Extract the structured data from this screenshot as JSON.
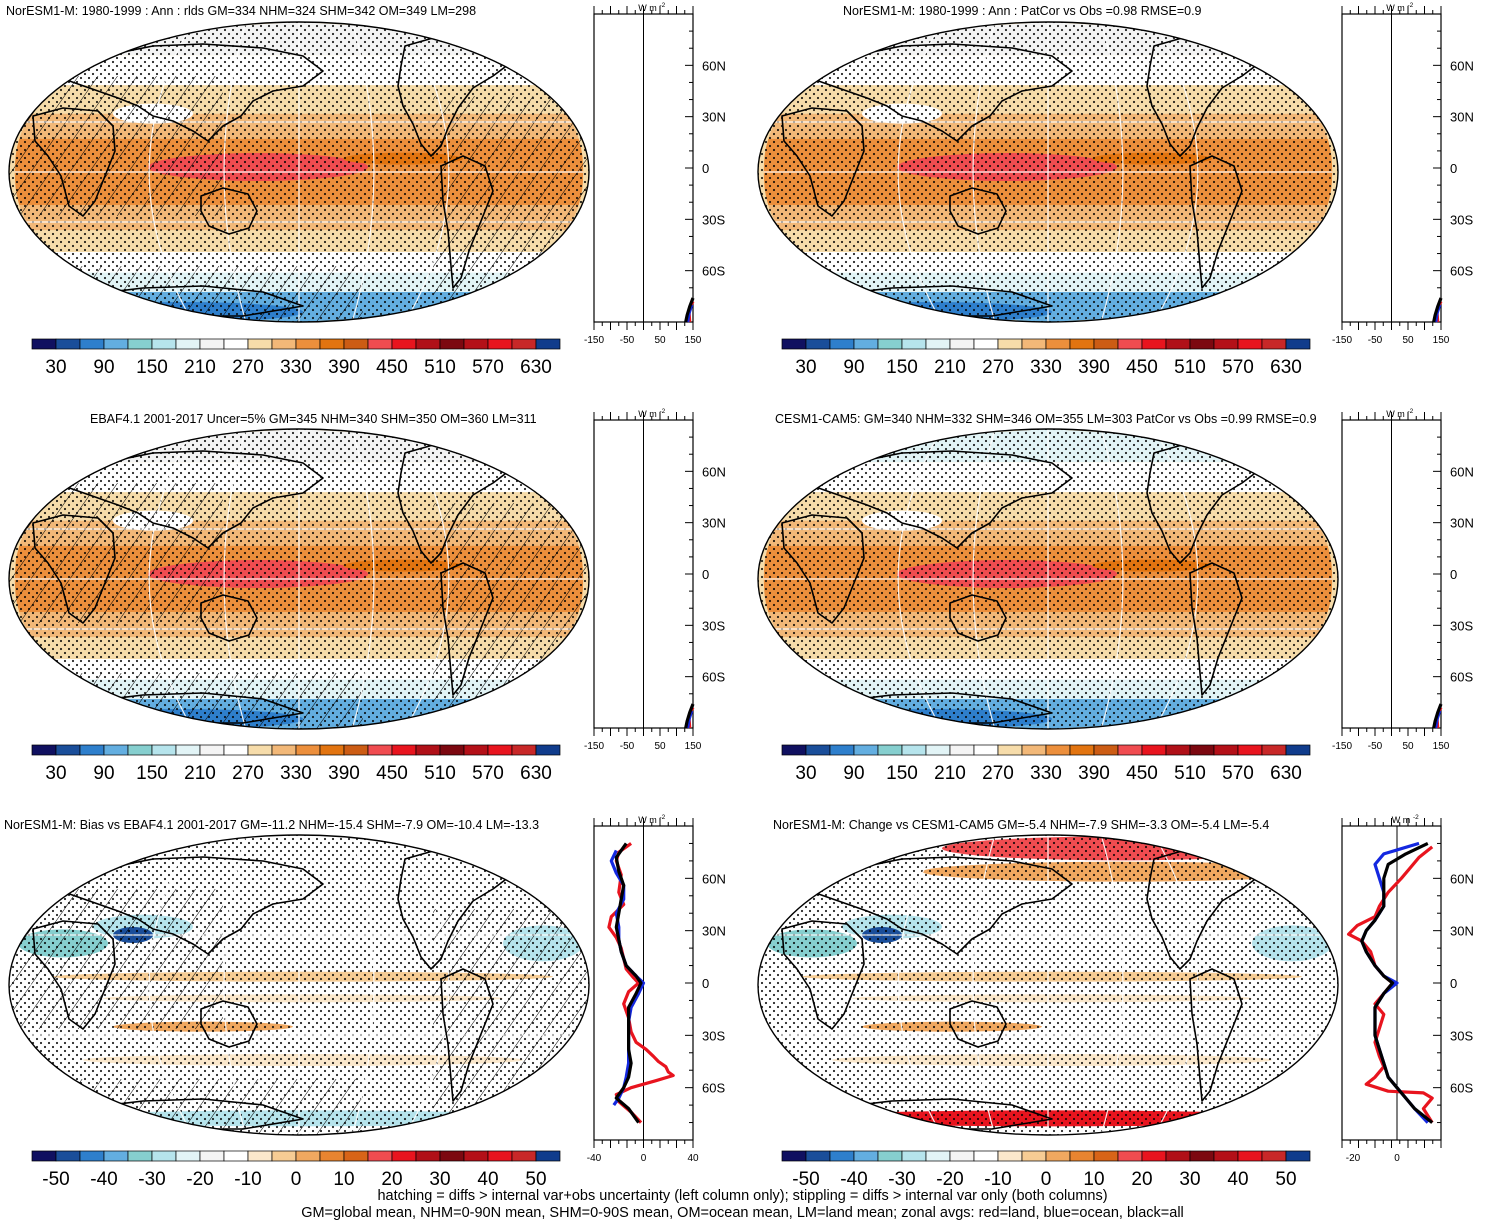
{
  "colors": {
    "scale_abs": [
      "#101060",
      "#1a4e9a",
      "#2e7fcc",
      "#63aee0",
      "#86cfcf",
      "#b6e4ec",
      "#e2f4f6",
      "#f4f4f4",
      "#ffffff",
      "#f6dcaa",
      "#f2b878",
      "#ec8f3c",
      "#e27410",
      "#cc5c14",
      "#f04c50",
      "#e8141e",
      "#b01018",
      "#7c0810",
      "#b41018",
      "#e8141e",
      "#c82828",
      "#103c8c"
    ],
    "scale_diff": [
      "#101060",
      "#1a4e9a",
      "#2e7fcc",
      "#63aee0",
      "#86cfcf",
      "#b6e4ec",
      "#e2f4f6",
      "#f4f4f4",
      "#ffffff",
      "#fbe8cc",
      "#f6cc94",
      "#f0a860",
      "#e88430",
      "#d86418",
      "#f04c50",
      "#e8141e",
      "#b01018",
      "#7c0810",
      "#b41018",
      "#e8141e",
      "#c82828",
      "#103c8c"
    ],
    "land_line": "#e8141e",
    "ocean_line": "#1428e0",
    "all_line": "#000000"
  },
  "panels": [
    {
      "title": "NorESM1-M: 1980-1999 : Ann : rlds GM=334 NHM=324 SHM=342 OM=349 LM=298",
      "kind": "abs",
      "hatch": true
    },
    {
      "title": "NorESM1-M: 1980-1999 : Ann : PatCor vs Obs =0.98 RMSE=0.9",
      "kind": "abs",
      "hatch": false
    },
    {
      "title": "EBAF4.1 2001-2017 Uncer=5% GM=345 NHM=340 SHM=350 OM=360 LM=311",
      "kind": "abs",
      "hatch": true
    },
    {
      "title": "CESM1-CAM5: GM=340 NHM=332 SHM=346 OM=355 LM=303 PatCor vs Obs =0.99 RMSE=0.9",
      "kind": "abs",
      "hatch": false
    },
    {
      "title": "NorESM1-M: Bias vs EBAF4.1 2001-2017 GM=-11.2 NHM=-15.4 SHM=-7.9 OM=-10.4 LM=-13.3",
      "kind": "diff",
      "hatch": true
    },
    {
      "title": "NorESM1-M: Change vs CESM1-CAM5 GM=-5.4 NHM=-7.9 SHM=-3.3 OM=-5.4 LM=-5.4",
      "kind": "diff",
      "hatch": false
    }
  ],
  "chart_data": [
    {
      "type": "colorbar",
      "name": "absolute rlds colorbar",
      "tick_labels": [
        "30",
        "90",
        "150",
        "210",
        "270",
        "330",
        "390",
        "450",
        "510",
        "570",
        "630"
      ],
      "levels": [
        30,
        60,
        90,
        120,
        150,
        180,
        210,
        240,
        270,
        300,
        330,
        360,
        390,
        420,
        450,
        480,
        510,
        540,
        570,
        600,
        630
      ]
    },
    {
      "type": "colorbar",
      "name": "difference colorbar",
      "tick_labels": [
        "-50",
        "-40",
        "-30",
        "-20",
        "-10",
        "0",
        "10",
        "20",
        "30",
        "40",
        "50"
      ],
      "levels": [
        -50,
        -45,
        -40,
        -35,
        -30,
        -25,
        -20,
        -15,
        -10,
        -5,
        0,
        5,
        10,
        15,
        20,
        25,
        30,
        35,
        40,
        45,
        50
      ]
    },
    {
      "type": "line",
      "name": "zonal average profile, absolute panels",
      "units_label": "W m",
      "units_sup": "-2",
      "xlim": [
        -150,
        150
      ],
      "x_tick_labels": [
        "-150",
        "-50",
        "50",
        "150"
      ],
      "lat_ticks": [
        {
          "lat": 60,
          "label": "60N"
        },
        {
          "lat": 30,
          "label": "30N"
        },
        {
          "lat": 0,
          "label": "0"
        },
        {
          "lat": -30,
          "label": "30S"
        },
        {
          "lat": -60,
          "label": "60S"
        }
      ],
      "ylim": [
        -90,
        90
      ],
      "series": [
        {
          "name": "land",
          "color": "red",
          "points": [
            [
              140,
              -90
            ],
            [
              138,
              -84
            ],
            [
              144,
              -80
            ],
            [
              150,
              -78
            ]
          ]
        },
        {
          "name": "ocean",
          "color": "blue",
          "points": [
            [
              134,
              -90
            ],
            [
              138,
              -85
            ],
            [
              146,
              -80
            ]
          ]
        },
        {
          "name": "all",
          "color": "black",
          "points": [
            [
              128,
              -90
            ],
            [
              132,
              -86
            ],
            [
              140,
              -81
            ],
            [
              150,
              -76
            ]
          ]
        }
      ]
    },
    {
      "type": "line",
      "name": "zonal average profile, NorESM1-M bias",
      "units_label": "W m",
      "units_sup": "-2",
      "xlim": [
        -40,
        40
      ],
      "x_tick_labels": [
        "-40",
        "0",
        "40"
      ],
      "lat_ticks": [
        {
          "lat": 60,
          "label": "60N"
        },
        {
          "lat": 30,
          "label": "30N"
        },
        {
          "lat": 0,
          "label": "0"
        },
        {
          "lat": -30,
          "label": "30S"
        },
        {
          "lat": -60,
          "label": "60S"
        }
      ],
      "ylim": [
        -90,
        90
      ],
      "series": [
        {
          "name": "land",
          "color": "red",
          "points": [
            [
              -10,
              80
            ],
            [
              -20,
              75
            ],
            [
              -22,
              70
            ],
            [
              -18,
              62
            ],
            [
              -20,
              52
            ],
            [
              -16,
              45
            ],
            [
              -26,
              38
            ],
            [
              -28,
              32
            ],
            [
              -22,
              26
            ],
            [
              -18,
              20
            ],
            [
              -16,
              14
            ],
            [
              -14,
              8
            ],
            [
              -8,
              3
            ],
            [
              -4,
              0
            ],
            [
              -12,
              -5
            ],
            [
              -16,
              -12
            ],
            [
              -12,
              -20
            ],
            [
              -10,
              -28
            ],
            [
              -6,
              -34
            ],
            [
              2,
              -38
            ],
            [
              8,
              -42
            ],
            [
              12,
              -45
            ],
            [
              18,
              -48
            ],
            [
              20,
              -51
            ],
            [
              24,
              -53
            ],
            [
              10,
              -56
            ],
            [
              -10,
              -60
            ],
            [
              -22,
              -64
            ],
            [
              -20,
              -68
            ],
            [
              -10,
              -74
            ],
            [
              -2,
              -80
            ]
          ]
        },
        {
          "name": "ocean",
          "color": "blue",
          "points": [
            [
              -22,
              76
            ],
            [
              -26,
              70
            ],
            [
              -22,
              63
            ],
            [
              -16,
              56
            ],
            [
              -16,
              48
            ],
            [
              -22,
              40
            ],
            [
              -20,
              32
            ],
            [
              -20,
              25
            ],
            [
              -18,
              18
            ],
            [
              -14,
              10
            ],
            [
              -6,
              4
            ],
            [
              0,
              0
            ],
            [
              -4,
              -6
            ],
            [
              -10,
              -14
            ],
            [
              -12,
              -22
            ],
            [
              -12,
              -30
            ],
            [
              -12,
              -38
            ],
            [
              -12,
              -46
            ],
            [
              -14,
              -54
            ],
            [
              -16,
              -60
            ],
            [
              -20,
              -66
            ],
            [
              -24,
              -70
            ]
          ]
        },
        {
          "name": "all",
          "color": "black",
          "points": [
            [
              -14,
              80
            ],
            [
              -22,
              72
            ],
            [
              -20,
              64
            ],
            [
              -16,
              56
            ],
            [
              -18,
              48
            ],
            [
              -20,
              40
            ],
            [
              -22,
              32
            ],
            [
              -20,
              25
            ],
            [
              -18,
              18
            ],
            [
              -14,
              10
            ],
            [
              -6,
              4
            ],
            [
              -2,
              0
            ],
            [
              -6,
              -6
            ],
            [
              -12,
              -14
            ],
            [
              -12,
              -22
            ],
            [
              -12,
              -30
            ],
            [
              -12,
              -38
            ],
            [
              -10,
              -46
            ],
            [
              -12,
              -54
            ],
            [
              -16,
              -60
            ],
            [
              -22,
              -66
            ],
            [
              -12,
              -72
            ],
            [
              -4,
              -80
            ]
          ]
        }
      ]
    },
    {
      "type": "line",
      "name": "zonal average profile, NorESM1-M change vs CESM1-CAM5",
      "units_label": "W m",
      "units_sup": "-2",
      "xlim": [
        -25,
        20
      ],
      "x_tick_labels": [
        "-20",
        "0"
      ],
      "lat_ticks": [
        {
          "lat": 60,
          "label": "60N"
        },
        {
          "lat": 30,
          "label": "30N"
        },
        {
          "lat": 0,
          "label": "0"
        },
        {
          "lat": -30,
          "label": "30S"
        },
        {
          "lat": -60,
          "label": "60S"
        }
      ],
      "ylim": [
        -90,
        90
      ],
      "series": [
        {
          "name": "land",
          "color": "red",
          "points": [
            [
              16,
              78
            ],
            [
              10,
              72
            ],
            [
              6,
              66
            ],
            [
              2,
              60
            ],
            [
              -4,
              52
            ],
            [
              -8,
              44
            ],
            [
              -10,
              38
            ],
            [
              -18,
              33
            ],
            [
              -22,
              28
            ],
            [
              -16,
              24
            ],
            [
              -12,
              18
            ],
            [
              -10,
              10
            ],
            [
              -6,
              4
            ],
            [
              -2,
              0
            ],
            [
              -6,
              -6
            ],
            [
              -10,
              -12
            ],
            [
              -6,
              -18
            ],
            [
              -8,
              -26
            ],
            [
              -10,
              -34
            ],
            [
              -8,
              -42
            ],
            [
              -6,
              -48
            ],
            [
              -10,
              -54
            ],
            [
              -14,
              -58
            ],
            [
              -4,
              -62
            ],
            [
              12,
              -63
            ],
            [
              16,
              -66
            ],
            [
              12,
              -72
            ],
            [
              16,
              -80
            ]
          ]
        },
        {
          "name": "ocean",
          "color": "blue",
          "points": [
            [
              10,
              80
            ],
            [
              -6,
              74
            ],
            [
              -10,
              68
            ],
            [
              -8,
              60
            ],
            [
              -6,
              52
            ],
            [
              -6,
              44
            ],
            [
              -10,
              36
            ],
            [
              -14,
              30
            ],
            [
              -16,
              24
            ],
            [
              -14,
              18
            ],
            [
              -10,
              10
            ],
            [
              -6,
              4
            ],
            [
              0,
              0
            ],
            [
              -6,
              -6
            ],
            [
              -10,
              -14
            ],
            [
              -10,
              -22
            ],
            [
              -10,
              -30
            ],
            [
              -8,
              -38
            ],
            [
              -6,
              -46
            ],
            [
              -4,
              -54
            ],
            [
              0,
              -60
            ],
            [
              4,
              -66
            ],
            [
              8,
              -72
            ],
            [
              14,
              -80
            ]
          ]
        },
        {
          "name": "all",
          "color": "black",
          "points": [
            [
              14,
              80
            ],
            [
              4,
              74
            ],
            [
              -4,
              68
            ],
            [
              -6,
              60
            ],
            [
              -6,
              52
            ],
            [
              -6,
              44
            ],
            [
              -10,
              36
            ],
            [
              -14,
              30
            ],
            [
              -16,
              24
            ],
            [
              -14,
              18
            ],
            [
              -10,
              10
            ],
            [
              -6,
              4
            ],
            [
              -2,
              0
            ],
            [
              -6,
              -6
            ],
            [
              -10,
              -14
            ],
            [
              -10,
              -22
            ],
            [
              -10,
              -30
            ],
            [
              -8,
              -38
            ],
            [
              -6,
              -46
            ],
            [
              -4,
              -54
            ],
            [
              0,
              -60
            ],
            [
              4,
              -66
            ],
            [
              8,
              -72
            ],
            [
              16,
              -80
            ]
          ]
        }
      ]
    }
  ],
  "caption": {
    "line1": "hatching = diffs > internal var+obs uncertainty (left column only); stippling = diffs > internal var only (both columns)",
    "line2": "GM=global mean, NHM=0-90N mean, SHM=0-90S mean, OM=ocean mean, LM=land mean; zonal avgs: red=land, blue=ocean, black=all"
  }
}
